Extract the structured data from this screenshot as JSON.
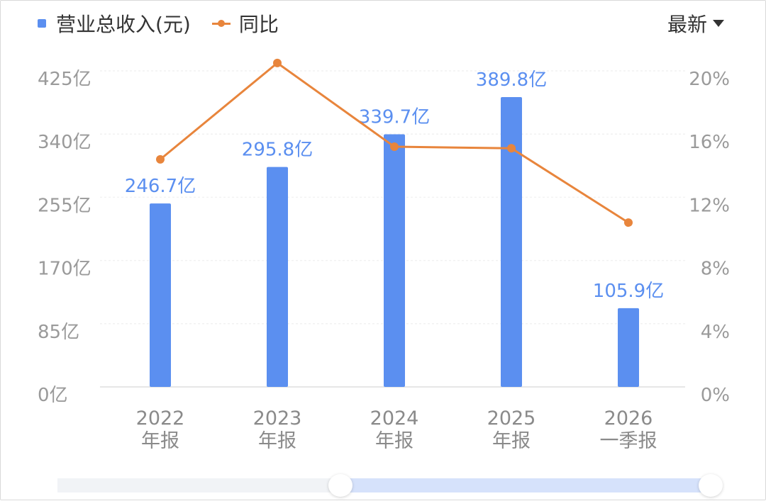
{
  "legend": {
    "revenue_label": "营业总收入(元)",
    "yoy_label": "同比",
    "bar_color": "#5b8ff0",
    "line_color": "#e8853c"
  },
  "filter": {
    "label": "最新",
    "icon": "caret-down-icon"
  },
  "chart_data": {
    "type": "bar+line",
    "categories": [
      [
        "2022",
        "年报"
      ],
      [
        "2023",
        "年报"
      ],
      [
        "2024",
        "年报"
      ],
      [
        "2025",
        "年报"
      ],
      [
        "2026",
        "一季报"
      ]
    ],
    "series": [
      {
        "name": "营业总收入(元)",
        "type": "bar",
        "axis": "left",
        "values": [
          246.7,
          295.8,
          339.7,
          389.8,
          105.9
        ],
        "labels": [
          "246.7亿",
          "295.8亿",
          "339.7亿",
          "389.8亿",
          "105.9亿"
        ]
      },
      {
        "name": "同比",
        "type": "line",
        "axis": "right",
        "values": [
          14.4,
          20.5,
          15.2,
          15.1,
          10.4
        ]
      }
    ],
    "y_left": {
      "min": 0,
      "max": 425,
      "ticks": [
        "0亿",
        "85亿",
        "170亿",
        "255亿",
        "340亿",
        "425亿"
      ]
    },
    "y_right": {
      "min": 0,
      "max": 20,
      "ticks": [
        "0%",
        "4%",
        "8%",
        "12%",
        "16%",
        "20%"
      ]
    },
    "grid": true
  },
  "range_slider": {
    "selected_from": 0.43,
    "selected_to": 1.0
  }
}
